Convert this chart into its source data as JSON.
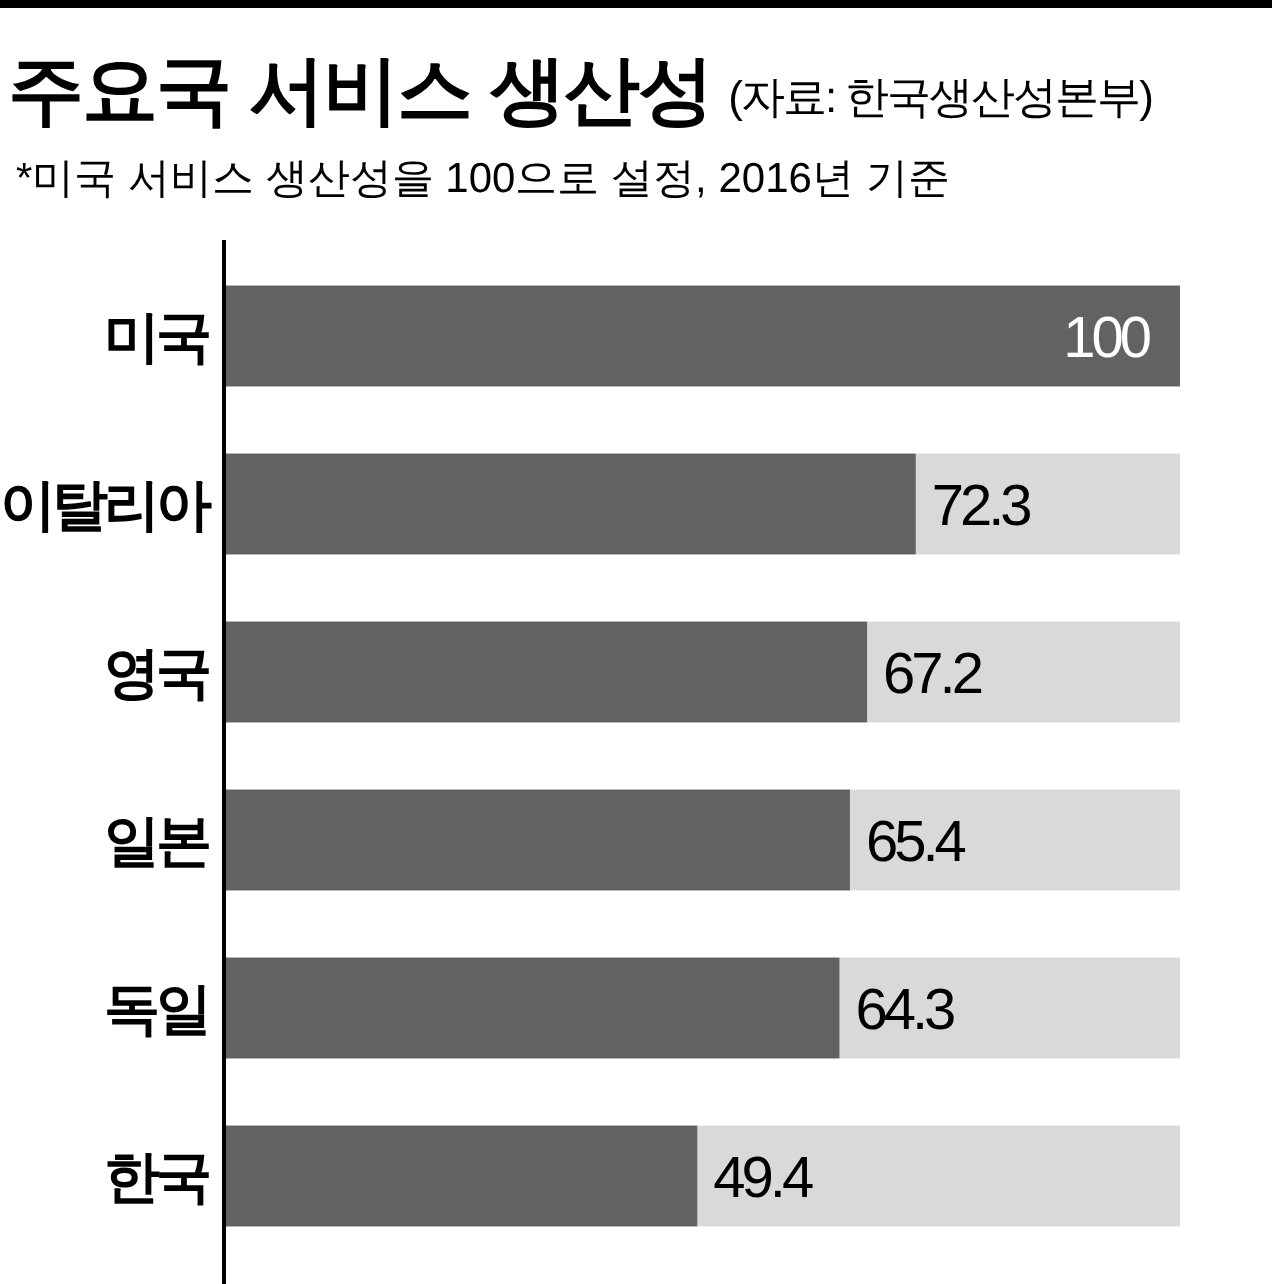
{
  "chart_data": {
    "type": "bar",
    "orientation": "horizontal",
    "title": "주요국 서비스 생산성",
    "subtitle": "*미국 서비스 생산성을 100으로 설정, 2016년 기준",
    "annotations": [
      "(자료: 한국생산성본부)"
    ],
    "categories": [
      "미국",
      "이탈리아",
      "영국",
      "일본",
      "독일",
      "한국"
    ],
    "values": [
      100,
      72.3,
      67.2,
      65.4,
      64.3,
      49.4
    ],
    "color": "#626262",
    "xlim": [
      0,
      100
    ],
    "tick_labels": "y",
    "data_labels": true
  }
}
